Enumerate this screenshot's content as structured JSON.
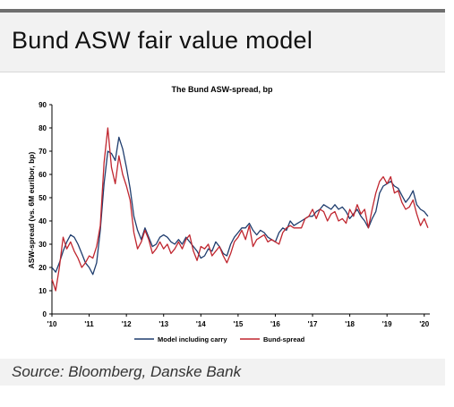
{
  "headline": "Bund ASW fair value model",
  "source": "Source: Bloomberg, Danske Bank",
  "colors": {
    "model": "#1f3d6e",
    "bund": "#c0262f",
    "axis": "#000000"
  },
  "chart_data": {
    "type": "line",
    "title": "The Bund ASW-spread, bp",
    "ylabel": "ASW-spread (vs. 6M euribor, bp)",
    "xlabel": "",
    "xlim": [
      2010.0,
      2020.15
    ],
    "ylim": [
      0,
      90
    ],
    "yticks": [
      0,
      10,
      20,
      30,
      40,
      50,
      60,
      70,
      80,
      90
    ],
    "xticks": [
      {
        "value": 2010,
        "label": "'10"
      },
      {
        "value": 2011,
        "label": "'11"
      },
      {
        "value": 2012,
        "label": "'12"
      },
      {
        "value": 2013,
        "label": "'13"
      },
      {
        "value": 2014,
        "label": "'14"
      },
      {
        "value": 2015,
        "label": "'15"
      },
      {
        "value": 2016,
        "label": "'16"
      },
      {
        "value": 2017,
        "label": "'17"
      },
      {
        "value": 2018,
        "label": "'18"
      },
      {
        "value": 2019,
        "label": "'19"
      },
      {
        "value": 2020,
        "label": "'20"
      }
    ],
    "legend_position": "bottom",
    "grid": false,
    "series": [
      {
        "name": "Model including carry",
        "color": "#1f3d6e",
        "x": [
          2010.0,
          2010.1,
          2010.2,
          2010.3,
          2010.4,
          2010.5,
          2010.6,
          2010.7,
          2010.8,
          2010.9,
          2011.0,
          2011.1,
          2011.2,
          2011.3,
          2011.4,
          2011.5,
          2011.6,
          2011.7,
          2011.8,
          2011.9,
          2012.0,
          2012.1,
          2012.2,
          2012.3,
          2012.4,
          2012.5,
          2012.6,
          2012.7,
          2012.8,
          2012.9,
          2013.0,
          2013.1,
          2013.2,
          2013.3,
          2013.4,
          2013.5,
          2013.6,
          2013.7,
          2013.8,
          2013.9,
          2014.0,
          2014.1,
          2014.2,
          2014.3,
          2014.4,
          2014.5,
          2014.6,
          2014.7,
          2014.8,
          2014.9,
          2015.0,
          2015.1,
          2015.2,
          2015.3,
          2015.4,
          2015.5,
          2015.6,
          2015.7,
          2015.8,
          2015.9,
          2016.0,
          2016.1,
          2016.2,
          2016.3,
          2016.4,
          2016.5,
          2016.6,
          2016.7,
          2016.8,
          2016.9,
          2017.0,
          2017.1,
          2017.2,
          2017.3,
          2017.4,
          2017.5,
          2017.6,
          2017.7,
          2017.8,
          2017.9,
          2018.0,
          2018.1,
          2018.2,
          2018.3,
          2018.4,
          2018.5,
          2018.6,
          2018.7,
          2018.8,
          2018.9,
          2019.0,
          2019.1,
          2019.2,
          2019.3,
          2019.4,
          2019.5,
          2019.6,
          2019.7,
          2019.8,
          2019.9,
          2020.0,
          2020.1
        ],
        "values": [
          20,
          18,
          22,
          27,
          31,
          34,
          33,
          30,
          26,
          22,
          20,
          17,
          22,
          36,
          56,
          70,
          69,
          66,
          76,
          71,
          63,
          54,
          42,
          36,
          32,
          37,
          33,
          29,
          30,
          33,
          34,
          33,
          31,
          30,
          32,
          30,
          33,
          31,
          29,
          27,
          24,
          25,
          28,
          27,
          31,
          29,
          26,
          25,
          30,
          33,
          35,
          37,
          37,
          39,
          36,
          34,
          36,
          35,
          33,
          32,
          31,
          35,
          37,
          36,
          40,
          38,
          39,
          40,
          41,
          42,
          42,
          44,
          45,
          47,
          46,
          45,
          47,
          45,
          46,
          44,
          41,
          43,
          45,
          42,
          40,
          37,
          41,
          44,
          52,
          55,
          56,
          57,
          55,
          54,
          51,
          48,
          50,
          53,
          47,
          45,
          44,
          42
        ]
      },
      {
        "name": "Bund-spread",
        "color": "#c0262f",
        "x": [
          2010.0,
          2010.1,
          2010.2,
          2010.3,
          2010.4,
          2010.5,
          2010.6,
          2010.7,
          2010.8,
          2010.9,
          2011.0,
          2011.1,
          2011.2,
          2011.3,
          2011.4,
          2011.5,
          2011.6,
          2011.7,
          2011.8,
          2011.9,
          2012.0,
          2012.1,
          2012.2,
          2012.3,
          2012.4,
          2012.5,
          2012.6,
          2012.7,
          2012.8,
          2012.9,
          2013.0,
          2013.1,
          2013.2,
          2013.3,
          2013.4,
          2013.5,
          2013.6,
          2013.7,
          2013.8,
          2013.9,
          2014.0,
          2014.1,
          2014.2,
          2014.3,
          2014.4,
          2014.5,
          2014.6,
          2014.7,
          2014.8,
          2014.9,
          2015.0,
          2015.1,
          2015.2,
          2015.3,
          2015.4,
          2015.5,
          2015.6,
          2015.7,
          2015.8,
          2015.9,
          2016.0,
          2016.1,
          2016.2,
          2016.3,
          2016.4,
          2016.5,
          2016.6,
          2016.7,
          2016.8,
          2016.9,
          2017.0,
          2017.1,
          2017.2,
          2017.3,
          2017.4,
          2017.5,
          2017.6,
          2017.7,
          2017.8,
          2017.9,
          2018.0,
          2018.1,
          2018.2,
          2018.3,
          2018.4,
          2018.5,
          2018.6,
          2018.7,
          2018.8,
          2018.9,
          2019.0,
          2019.1,
          2019.2,
          2019.3,
          2019.4,
          2019.5,
          2019.6,
          2019.7,
          2019.8,
          2019.9,
          2020.0,
          2020.1
        ],
        "values": [
          15,
          10,
          20,
          33,
          28,
          31,
          27,
          24,
          20,
          22,
          25,
          24,
          29,
          38,
          65,
          80,
          63,
          56,
          68,
          60,
          55,
          49,
          35,
          28,
          31,
          36,
          32,
          26,
          28,
          31,
          28,
          30,
          26,
          28,
          31,
          28,
          32,
          34,
          27,
          23,
          29,
          28,
          30,
          25,
          27,
          29,
          25,
          22,
          26,
          31,
          33,
          36,
          32,
          38,
          29,
          32,
          33,
          34,
          31,
          32,
          31,
          30,
          35,
          37,
          38,
          37,
          37,
          37,
          41,
          42,
          45,
          41,
          45,
          44,
          40,
          43,
          44,
          40,
          41,
          39,
          45,
          42,
          47,
          43,
          45,
          37,
          45,
          52,
          57,
          59,
          56,
          59,
          52,
          53,
          48,
          45,
          46,
          49,
          43,
          38,
          41,
          37
        ]
      }
    ]
  }
}
